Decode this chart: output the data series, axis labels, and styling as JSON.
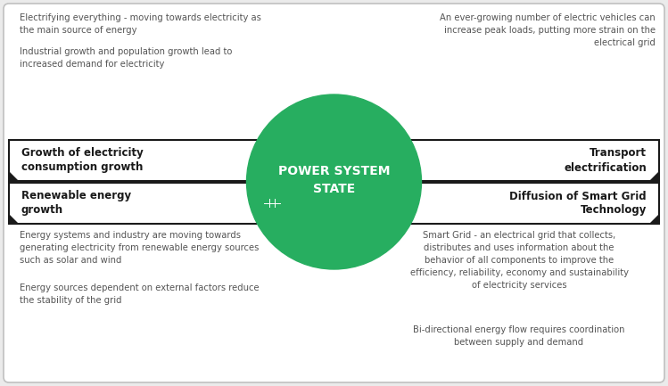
{
  "bg_color": "#ebebeb",
  "white": "#ffffff",
  "green": "#27ae60",
  "dark_text": "#1a1a1a",
  "gray_text": "#666666",
  "border_color": "#1a1a1a",
  "top_left_bullets": [
    "Electrifying everything - moving towards electricity as\nthe main source of energy",
    "Industrial growth and population growth lead to\nincreased demand for electricity"
  ],
  "top_right_bullets": [
    "An ever-growing number of electric vehicles can\nincrease peak loads, putting more strain on the\nelectrical grid"
  ],
  "bottom_left_bullets": [
    "Energy systems and industry are moving towards\ngenerating electricity from renewable energy sources\nsuch as solar and wind",
    "Energy sources dependent on external factors reduce\nthe stability of the grid"
  ],
  "bottom_right_bullets": [
    "Smart Grid - an electrical grid that collects,\ndistributes and uses information about the\nbehavior of all components to improve the\nefficiency, reliability, economy and sustainability\nof electricity services",
    "Bi-directional energy flow requires coordination\nbetween supply and demand"
  ],
  "label_tl": "Growth of electricity\nconsumption growth",
  "label_tr": "Transport\nelectrification",
  "label_bl": "Renewable energy\ngrowth",
  "label_br": "Diffusion of Smart Grid\nTechnology"
}
